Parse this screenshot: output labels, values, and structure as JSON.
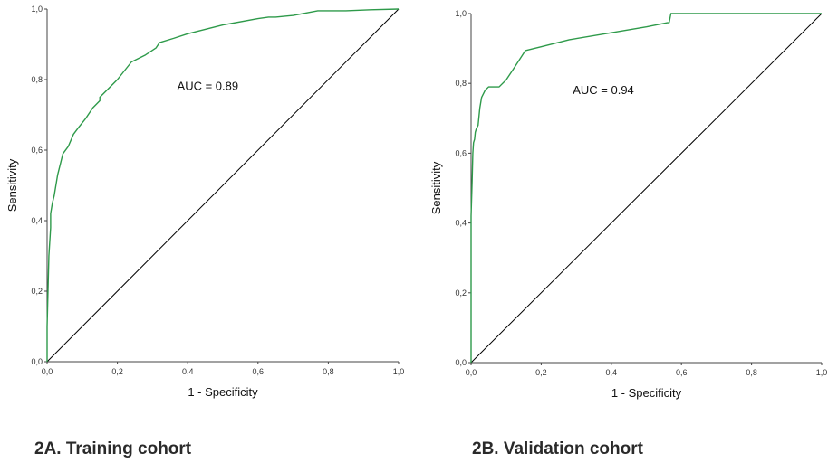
{
  "captions": [
    "2A. Training cohort",
    "2B. Validation cohort"
  ],
  "chart_data": [
    {
      "type": "line",
      "xlabel": "1 - Specificity",
      "ylabel": "Sensitivity",
      "xlim": [
        0,
        1
      ],
      "ylim": [
        0,
        1
      ],
      "xticks": [
        "0,0",
        "0,2",
        "0,4",
        "0,6",
        "0,8",
        "1,0"
      ],
      "yticks": [
        "0,0",
        "0,2",
        "0,4",
        "0,6",
        "0,8",
        "1,0"
      ],
      "annotation": "AUC = 0.89",
      "colors": {
        "roc": "#2e9a4a",
        "reference": "#000000"
      },
      "series": [
        {
          "x": [
            0,
            0,
            0.003,
            0.005,
            0.01,
            0.01,
            0.015,
            0.02,
            0.03,
            0.04,
            0.045,
            0.06,
            0.075,
            0.09,
            0.11,
            0.13,
            0.15,
            0.15,
            0.17,
            0.2,
            0.24,
            0.28,
            0.31,
            0.32,
            0.36,
            0.4,
            0.5,
            0.6,
            0.63,
            0.65,
            0.7,
            0.77,
            0.85,
            0.92,
            1.0
          ],
          "y": [
            0,
            0.1,
            0.22,
            0.3,
            0.38,
            0.42,
            0.45,
            0.47,
            0.53,
            0.57,
            0.59,
            0.61,
            0.645,
            0.665,
            0.69,
            0.72,
            0.74,
            0.75,
            0.77,
            0.8,
            0.85,
            0.87,
            0.89,
            0.905,
            0.917,
            0.93,
            0.955,
            0.973,
            0.977,
            0.977,
            0.982,
            0.995,
            0.995,
            0.998,
            1.0
          ]
        },
        {
          "x": [
            0,
            1
          ],
          "y": [
            0,
            1
          ]
        }
      ]
    },
    {
      "type": "line",
      "xlabel": "1 - Specificity",
      "ylabel": "Sensitivity",
      "xlim": [
        0,
        1
      ],
      "ylim": [
        0,
        1
      ],
      "xticks": [
        "0,0",
        "0,2",
        "0,4",
        "0,6",
        "0,8",
        "1,0"
      ],
      "yticks": [
        "0,0",
        "0,2",
        "0,4",
        "0,6",
        "0,8",
        "1,0"
      ],
      "annotation": "AUC = 0.94",
      "colors": {
        "roc": "#2e9a4a",
        "reference": "#000000"
      },
      "series": [
        {
          "x": [
            0,
            0,
            0.003,
            0.005,
            0.007,
            0.01,
            0.012,
            0.015,
            0.02,
            0.025,
            0.03,
            0.04,
            0.05,
            0.06,
            0.07,
            0.08,
            0.1,
            0.12,
            0.155,
            0.2,
            0.28,
            0.4,
            0.5,
            0.56,
            0.565,
            0.57,
            0.58,
            0.7,
            1.0
          ],
          "y": [
            0,
            0.42,
            0.52,
            0.6,
            0.63,
            0.64,
            0.66,
            0.67,
            0.68,
            0.73,
            0.76,
            0.78,
            0.79,
            0.79,
            0.79,
            0.79,
            0.81,
            0.84,
            0.894,
            0.905,
            0.925,
            0.945,
            0.962,
            0.974,
            0.974,
            1.0,
            1.0,
            1.0,
            1.0
          ]
        },
        {
          "x": [
            0,
            1
          ],
          "y": [
            0,
            1
          ]
        }
      ]
    }
  ]
}
